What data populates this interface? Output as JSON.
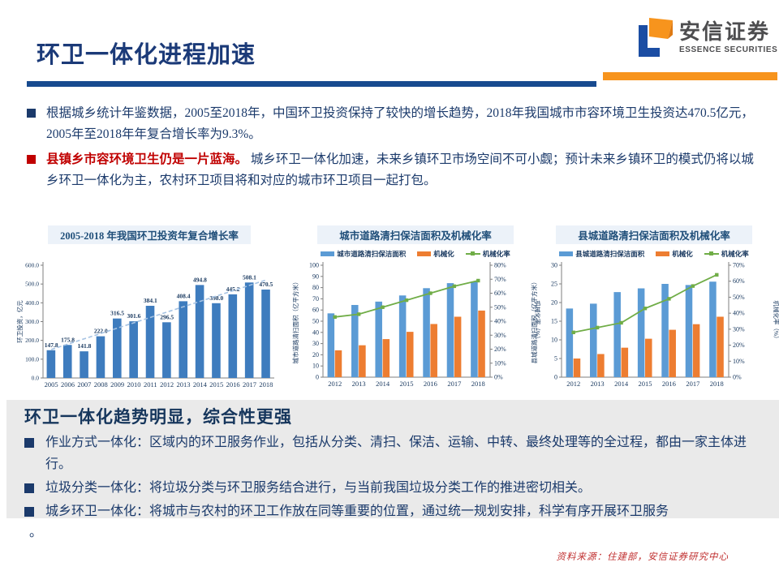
{
  "header": {
    "title": "环卫一体化进程加速",
    "logo": {
      "cn": "安信证券",
      "en": "ESSENCE SECURITIES"
    },
    "accent_navy": "#174A8F",
    "accent_orange": "#F7941D"
  },
  "intro": {
    "bullets": [
      {
        "text": "根据城乡统计年鉴数据，2005至2018年，中国环卫投资保持了较快的增长趋势，2018年我国城市市容环境卫生投资达470.5亿元，2005年至2018年年复合增长率为9.3%。"
      },
      {
        "bold": "县镇乡市容环境卫生仍是一片蓝海。",
        "text": "城乡环卫一体化加速，未来乡镇环卫市场空间不可小觑；预计未来乡镇环卫的模式仍将以城乡环卫一体化为主，农村环卫项目将和对应的城市环卫项目一起打包。"
      }
    ]
  },
  "chart_data": [
    {
      "type": "bar",
      "title": "2005-2018 年我国环卫投资年复合增长率",
      "ylabel": "环卫投资，亿元",
      "categories": [
        "2005",
        "2006",
        "2007",
        "2008",
        "2009",
        "2010",
        "2011",
        "2012",
        "2013",
        "2014",
        "2015",
        "2016",
        "2017",
        "2018"
      ],
      "values": [
        147.8,
        175.8,
        141.8,
        222.0,
        316.5,
        301.6,
        384.1,
        296.5,
        408.4,
        494.8,
        398.0,
        445.2,
        508.1,
        470.5
      ],
      "ylim": [
        0,
        600
      ],
      "ytick_step": 100,
      "bar_color": "#3E7CBE",
      "trendline": true,
      "trendline_color": "#A6C3E3",
      "grid": false
    },
    {
      "type": "bar+line",
      "title": "城市道路清扫保洁面积及机械化率",
      "categories": [
        "2012",
        "2013",
        "2014",
        "2015",
        "2016",
        "2017",
        "2018"
      ],
      "series": [
        {
          "name": "城市道路清扫保洁面积",
          "type": "bar",
          "axis": "left",
          "color": "#5B9BD5",
          "values": [
            57.0,
            64.5,
            67.5,
            73.0,
            79.5,
            84.0,
            85.5
          ]
        },
        {
          "name": "机械化",
          "type": "bar",
          "axis": "left",
          "color": "#ED7D31",
          "values": [
            24.0,
            28.5,
            34.0,
            40.5,
            47.5,
            54.0,
            59.5
          ]
        },
        {
          "name": "机械化率",
          "type": "line",
          "axis": "right",
          "color": "#70AD47",
          "values": [
            43,
            45,
            50,
            55,
            60,
            65,
            69
          ]
        }
      ],
      "left_ylim": [
        0,
        100
      ],
      "left_step": 10,
      "right_ylim": [
        0,
        80
      ],
      "right_step": 10,
      "left_ylabel": "城市道路清扫面积（亿平方米）",
      "right_ylabel": "机械化率（%）",
      "legend_position": "top",
      "grid": false
    },
    {
      "type": "bar+line",
      "title": "县城道路清扫保洁面积及机械化率",
      "categories": [
        "2012",
        "2013",
        "2014",
        "2015",
        "2016",
        "2017",
        "2018"
      ],
      "series": [
        {
          "name": "县城道路清扫保洁面积",
          "type": "bar",
          "axis": "left",
          "color": "#5B9BD5",
          "values": [
            18.4,
            19.7,
            22.8,
            23.8,
            25.0,
            24.7,
            25.6
          ]
        },
        {
          "name": "机械化",
          "type": "bar",
          "axis": "left",
          "color": "#ED7D31",
          "values": [
            5.0,
            6.2,
            7.9,
            10.3,
            12.7,
            14.2,
            16.2
          ]
        },
        {
          "name": "机械化率",
          "type": "line",
          "axis": "right",
          "color": "#70AD47",
          "values": [
            28,
            31,
            34,
            43,
            49,
            57,
            64
          ]
        }
      ],
      "left_ylim": [
        0,
        30
      ],
      "left_step": 5,
      "right_ylim": [
        0,
        70
      ],
      "right_step": 10,
      "left_ylabel": "县城道路清扫面积（亿平方米）",
      "right_ylabel": "机械化率（%）",
      "legend_position": "top",
      "grid": false
    }
  ],
  "bottom": {
    "heading": "环卫一体化趋势明显，综合性更强",
    "bullets": [
      "作业方式一体化：区域内的环卫服务作业，包括从分类、清扫、保洁、运输、中转、最终处理等的全过程，都由一家主体进行。",
      "垃圾分类一体化：将垃圾分类与环卫服务结合进行，与当前我国垃圾分类工作的推进密切相关。",
      "城乡环卫一体化：将城市与农村的环卫工作放在同等重要的位置，通过统一规划安排，科学有序开展环卫服务"
    ],
    "trailing": "。"
  },
  "source": {
    "text": "资料来源：住建部，安信证券研究中心"
  }
}
